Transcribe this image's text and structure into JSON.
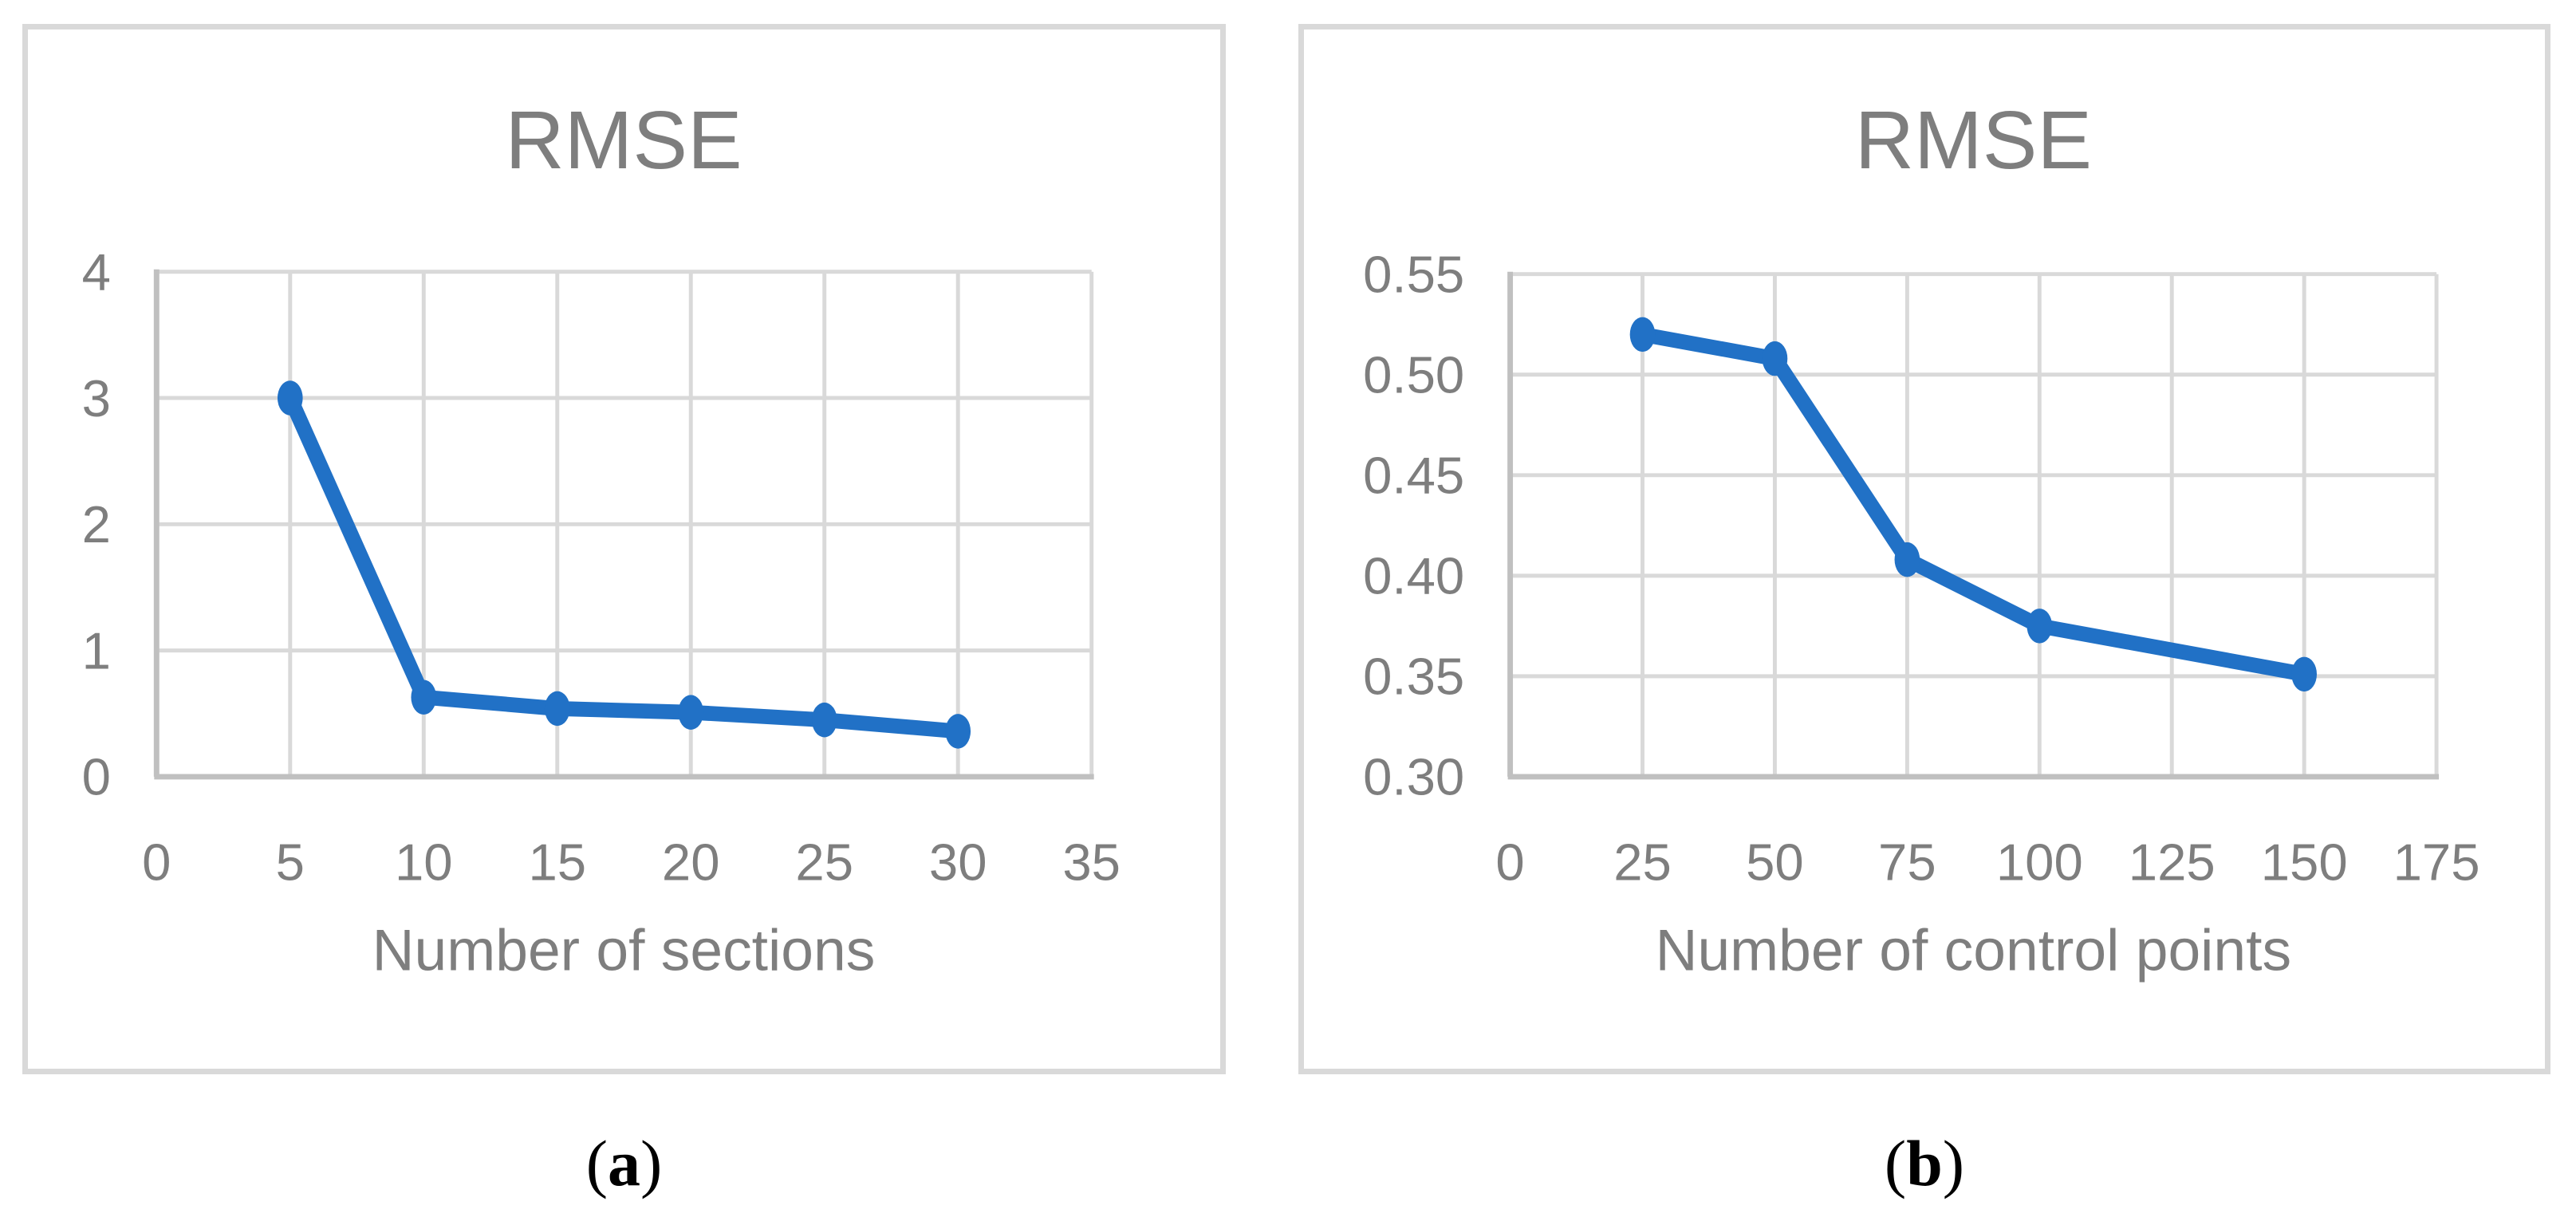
{
  "figure": {
    "background": "#ffffff"
  },
  "theme": {
    "series_color": "#2171c6",
    "grid_color": "#d9d9d9",
    "axis_color": "#c0c0c0",
    "text_color": "#7e7e7e",
    "panel_border_color": "#d9d9d9",
    "caption_color": "#000000"
  },
  "captions": {
    "a": {
      "open": "(",
      "label": "a",
      "close": ")"
    },
    "b": {
      "open": "(",
      "label": "b",
      "close": ")"
    }
  },
  "chart_data": [
    {
      "type": "line",
      "title": "RMSE",
      "xlabel": "Number of sections",
      "ylabel": "",
      "xlim": [
        0,
        35
      ],
      "ylim": [
        0,
        4
      ],
      "xtick_values": [
        0,
        5,
        10,
        15,
        20,
        25,
        30,
        35
      ],
      "xtick_labels": [
        "0",
        "5",
        "10",
        "15",
        "20",
        "25",
        "30",
        "35"
      ],
      "ytick_values": [
        0,
        1,
        2,
        3,
        4
      ],
      "ytick_labels": [
        "0",
        "1",
        "2",
        "3",
        "4"
      ],
      "grid": true,
      "legend": false,
      "series": [
        {
          "name": "RMSE",
          "points": [
            [
              5,
              3.0
            ],
            [
              10,
              0.63
            ],
            [
              15,
              0.54
            ],
            [
              20,
              0.51
            ],
            [
              25,
              0.45
            ],
            [
              30,
              0.36
            ]
          ]
        }
      ]
    },
    {
      "type": "line",
      "title": "RMSE",
      "xlabel": "Number of control points",
      "ylabel": "",
      "xlim": [
        0,
        175
      ],
      "ylim": [
        0.3,
        0.55
      ],
      "xtick_values": [
        0,
        25,
        50,
        75,
        100,
        125,
        150,
        175
      ],
      "xtick_labels": [
        "0",
        "25",
        "50",
        "75",
        "100",
        "125",
        "150",
        "175"
      ],
      "ytick_values": [
        0.3,
        0.35,
        0.4,
        0.45,
        0.5,
        0.55
      ],
      "ytick_labels": [
        "0.30",
        "0.35",
        "0.40",
        "0.45",
        "0.50",
        "0.55"
      ],
      "grid": true,
      "legend": false,
      "series": [
        {
          "name": "RMSE",
          "points": [
            [
              25,
              0.52
            ],
            [
              50,
              0.508
            ],
            [
              75,
              0.408
            ],
            [
              100,
              0.375
            ],
            [
              150,
              0.351
            ]
          ]
        }
      ]
    }
  ]
}
